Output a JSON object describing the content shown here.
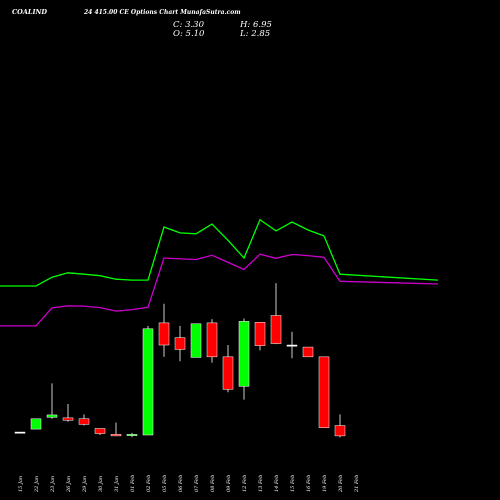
{
  "header": {
    "symbol": "COALIND",
    "subtitle": "24 415.00 CE Options Chart MunafaSutra.com"
  },
  "ohlc": {
    "c_label": "C: 3.30",
    "o_label": "O: 5.10",
    "h_label": "H: 6.95",
    "l_label": "L: 2.85"
  },
  "colors": {
    "background": "#000000",
    "up": "#00ff00",
    "down": "#ff0000",
    "neutral": "#ffffff",
    "band_upper": "#00ff00",
    "band_lower": "#cc00cc"
  },
  "chart_data": {
    "type": "candlestick",
    "title": "24 415.00 CE Options Chart MunafaSutra.com",
    "x_tick_labels": [
      "15 Jan",
      "22 Jan",
      "23 Jan",
      "26 Jan",
      "29 Jan",
      "30 Jan",
      "31 Jan",
      "01 Feb",
      "02 Feb",
      "05 Feb",
      "06 Feb",
      "07 Feb",
      "08 Feb",
      "09 Feb",
      "12 Feb",
      "13 Feb",
      "14 Feb",
      "15 Feb",
      "16 Feb",
      "19 Feb",
      "20 Feb",
      "21 Feb"
    ],
    "price_range": [
      0,
      10
    ],
    "candles": [
      {
        "date": "15 Jan",
        "open": 0.1,
        "high": 0.1,
        "low": 0.08,
        "close": 0.1,
        "dir": "flat"
      },
      {
        "date": "22 Jan",
        "open": 0.2,
        "high": 0.55,
        "low": 0.2,
        "close": 0.55,
        "dir": "up"
      },
      {
        "date": "23 Jan",
        "open": 0.6,
        "high": 1.75,
        "low": 0.55,
        "close": 0.68,
        "dir": "up"
      },
      {
        "date": "26 Jan",
        "open": 0.58,
        "high": 1.05,
        "low": 0.45,
        "close": 0.5,
        "dir": "down"
      },
      {
        "date": "29 Jan",
        "open": 0.55,
        "high": 0.7,
        "low": 0.32,
        "close": 0.36,
        "dir": "down"
      },
      {
        "date": "30 Jan",
        "open": 0.22,
        "high": 0.22,
        "low": 0.0,
        "close": 0.05,
        "dir": "down"
      },
      {
        "date": "31 Jan",
        "open": 0.02,
        "high": 0.42,
        "low": 0.0,
        "close": -0.03,
        "dir": "down"
      },
      {
        "date": "01 Feb",
        "open": 0.0,
        "high": 0.07,
        "low": -0.07,
        "close": 0.02,
        "dir": "up"
      },
      {
        "date": "02 Feb",
        "open": 0.0,
        "high": 3.7,
        "low": 0.0,
        "close": 3.6,
        "dir": "up"
      },
      {
        "date": "05 Feb",
        "open": 3.8,
        "high": 4.45,
        "low": 2.65,
        "close": 3.05,
        "dir": "down"
      },
      {
        "date": "06 Feb",
        "open": 3.3,
        "high": 3.7,
        "low": 2.5,
        "close": 2.9,
        "dir": "down"
      },
      {
        "date": "07 Feb",
        "open": 2.63,
        "high": 3.75,
        "low": 2.63,
        "close": 3.77,
        "dir": "up"
      },
      {
        "date": "08 Feb",
        "open": 3.8,
        "high": 3.93,
        "low": 2.45,
        "close": 2.65,
        "dir": "down"
      },
      {
        "date": "09 Feb",
        "open": 2.65,
        "high": 3.05,
        "low": 1.45,
        "close": 1.55,
        "dir": "down"
      },
      {
        "date": "12 Feb",
        "open": 1.65,
        "high": 3.95,
        "low": 1.2,
        "close": 3.85,
        "dir": "up"
      },
      {
        "date": "13 Feb",
        "open": 3.82,
        "high": 3.82,
        "low": 2.87,
        "close": 3.03,
        "dir": "down"
      },
      {
        "date": "14 Feb",
        "open": 4.05,
        "high": 5.15,
        "low": 3.08,
        "close": 3.1,
        "dir": "down"
      },
      {
        "date": "15 Feb",
        "open": 3.05,
        "high": 3.5,
        "low": 2.6,
        "close": 3.05,
        "dir": "flat"
      },
      {
        "date": "16 Feb",
        "open": 2.98,
        "high": 2.98,
        "low": 2.65,
        "close": 2.65,
        "dir": "down"
      },
      {
        "date": "19 Feb",
        "open": 2.65,
        "high": 2.65,
        "low": 0.25,
        "close": 0.25,
        "dir": "down"
      },
      {
        "date": "20 Feb",
        "open": 0.32,
        "high": 0.7,
        "low": -0.08,
        "close": -0.03,
        "dir": "down"
      },
      {
        "date": "21 Feb",
        "open": null,
        "high": null,
        "low": null,
        "close": null,
        "dir": "none"
      }
    ],
    "bands": {
      "upper": [
        5.05,
        5.05,
        5.35,
        5.5,
        5.45,
        5.4,
        5.28,
        5.25,
        5.25,
        7.05,
        6.85,
        6.82,
        7.15,
        6.6,
        6.0,
        7.3,
        6.92,
        7.22,
        6.95,
        6.75,
        5.45,
        5.25
      ],
      "lower": [
        3.7,
        3.7,
        4.31,
        4.38,
        4.37,
        4.32,
        4.2,
        4.25,
        4.33,
        6.0,
        5.97,
        5.95,
        6.09,
        5.85,
        5.61,
        6.13,
        5.99,
        6.12,
        6.08,
        6.02,
        5.21,
        5.12
      ]
    }
  }
}
